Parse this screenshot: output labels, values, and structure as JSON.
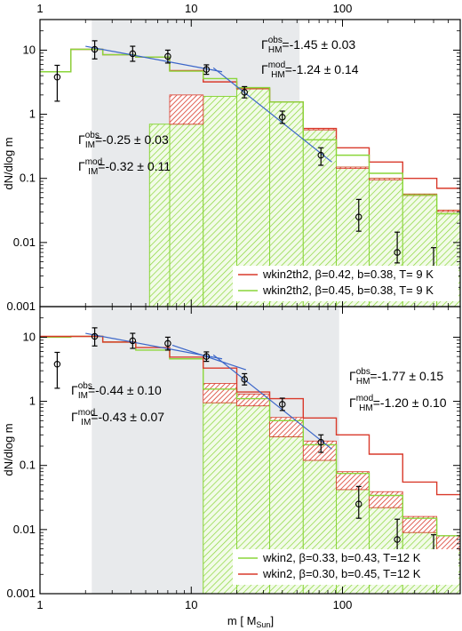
{
  "chart_data": [
    {
      "type": "histogram",
      "panel": "top",
      "xlabel": "",
      "ylabel": "dN/dlog m",
      "xscale": "log",
      "yscale": "log",
      "xlim": [
        1,
        600
      ],
      "ylim": [
        0.001,
        30
      ],
      "xticks_labels": [
        "1",
        "10",
        "100"
      ],
      "xticks_position": "top",
      "yticks": [
        0.001,
        0.01,
        0.1,
        1,
        10
      ],
      "yticks_labels": [
        "0.001",
        "0.01",
        "0.1",
        "1",
        "10"
      ],
      "shaded_region": [
        2.2,
        52
      ],
      "bin_edges": [
        1,
        1.6,
        2.6,
        4.3,
        7.2,
        12,
        20,
        33,
        55,
        91,
        150,
        250,
        420,
        600
      ],
      "series": [
        {
          "name": "wkin2th2, β=0.42, b=0.38, T= 9 K",
          "color": "#d93a2b",
          "values": [
            4.6,
            10.3,
            8.5,
            7.8,
            4.8,
            3.2,
            2.5,
            1.55,
            0.6,
            0.3,
            0.18,
            0.1,
            0.07
          ],
          "lower_values": [
            null,
            null,
            null,
            null,
            0.7,
            1.9,
            2.5,
            1.55,
            0.6,
            0.15,
            0.1,
            0.057,
            0.032
          ]
        },
        {
          "name": "wkin2th2, β=0.45, b=0.38, T= 9 K",
          "color": "#8ad63a",
          "values": [
            4.6,
            10.3,
            8.5,
            7.8,
            4.7,
            3.6,
            2.6,
            1.55,
            0.4,
            0.23,
            0.12,
            0.055,
            0.028
          ]
        }
      ],
      "observed": {
        "x": [
          1.3,
          2.3,
          4.1,
          7.0,
          12.6,
          22.5,
          40,
          72,
          128,
          230,
          400
        ],
        "y": [
          3.8,
          10.3,
          8.8,
          8.0,
          5.0,
          2.2,
          0.9,
          0.23,
          0.025,
          0.007,
          0.0038
        ],
        "yerr_low": [
          1.6,
          7.3,
          6.7,
          6.3,
          4.2,
          1.8,
          0.72,
          0.16,
          0.015,
          0.0048,
          0.0026
        ],
        "yerr_high": [
          5.8,
          14.0,
          11.5,
          10.0,
          5.9,
          2.7,
          1.12,
          0.3,
          0.047,
          0.0145,
          0.0083
        ]
      },
      "fits": [
        {
          "x": [
            2,
            16
          ],
          "y": [
            11.5,
            4.6
          ]
        },
        {
          "x": [
            14,
            85
          ],
          "y": [
            5.3,
            0.18
          ]
        }
      ],
      "annotations": [
        {
          "label": "Γ",
          "sub": "HM",
          "sup": "obs",
          "value": "=-1.45 ± 0.03"
        },
        {
          "label": "Γ",
          "sub": "HM",
          "sup": "mod",
          "value": "=-1.24 ± 0.14"
        },
        {
          "label": "Γ",
          "sub": "IM",
          "sup": "obs",
          "value": "=-0.25 ± 0.03"
        },
        {
          "label": "Γ",
          "sub": "IM",
          "sup": "mod",
          "value": "=-0.32 ± 0.11"
        }
      ],
      "legend_position": "bottom-right"
    },
    {
      "type": "histogram",
      "panel": "bottom",
      "xlabel": "m [ M",
      "xlabel_sub": "Sun",
      "xlabel_end": "]",
      "ylabel": "dN/dlog m",
      "xscale": "log",
      "yscale": "log",
      "xlim": [
        1,
        600
      ],
      "ylim": [
        0.001,
        30
      ],
      "xticks_labels": [
        "1",
        "10",
        "100"
      ],
      "yticks": [
        0.001,
        0.01,
        0.1,
        1,
        10
      ],
      "yticks_labels": [
        "0.001",
        "0.01",
        "0.1",
        "1",
        "10"
      ],
      "shaded_region": [
        2.2,
        95
      ],
      "bin_edges": [
        1,
        1.6,
        2.6,
        4.3,
        7.2,
        12,
        20,
        33,
        55,
        91,
        150,
        250,
        420,
        600
      ],
      "series": [
        {
          "name": "wkin2, β=0.33, b=0.43, T=12 K",
          "color": "#8ad63a",
          "values": [
            10.0,
            10.3,
            8.4,
            6.3,
            4.6,
            1.55,
            1.1,
            0.5,
            0.21,
            0.075,
            0.034,
            0.015,
            0.008
          ],
          "upper_values": [
            null,
            null,
            null,
            null,
            null,
            1.9,
            1.3,
            0.56,
            0.24,
            0.08,
            0.039,
            0.016,
            0.008
          ],
          "fill_values": [
            null,
            null,
            null,
            null,
            null,
            0.95,
            0.85,
            0.28,
            0.12,
            0.042,
            0.022,
            0.009,
            0.0048
          ]
        },
        {
          "name": "wkin2, β=0.30, b=0.45, T=12 K",
          "color": "#d93a2b",
          "values": [
            10.3,
            10.3,
            8.4,
            6.9,
            4.9,
            3.3,
            1.4,
            1.1,
            0.55,
            0.3,
            0.15,
            0.055,
            0.035
          ],
          "lower_values": [
            null,
            null,
            null,
            null,
            null,
            1.9,
            1.3,
            0.56,
            0.24,
            0.08,
            0.039,
            0.016,
            0.008
          ]
        }
      ],
      "observed": {
        "x": [
          1.3,
          2.3,
          4.1,
          7.0,
          12.6,
          22.5,
          40,
          72,
          128,
          230,
          400
        ],
        "y": [
          3.8,
          10.3,
          8.8,
          8.0,
          5.0,
          2.2,
          0.9,
          0.23,
          0.025,
          0.007,
          0.0038
        ],
        "yerr_low": [
          1.6,
          7.3,
          6.7,
          6.3,
          4.2,
          1.8,
          0.72,
          0.16,
          0.015,
          0.0048,
          0.0026
        ],
        "yerr_high": [
          5.8,
          14.0,
          11.5,
          10.0,
          5.9,
          2.7,
          1.12,
          0.3,
          0.047,
          0.0145,
          0.0083
        ]
      },
      "fits": [
        {
          "x": [
            2,
            16
          ],
          "y": [
            11.5,
            4.6
          ]
        },
        {
          "x": [
            14,
            85
          ],
          "y": [
            5.3,
            0.18
          ]
        },
        {
          "x": [
            7.5,
            23
          ],
          "y": [
            7.5,
            3.1
          ]
        }
      ],
      "annotations": [
        {
          "label": "Γ",
          "sub": "IM",
          "sup": "obs",
          "value": "=-0.44 ± 0.10"
        },
        {
          "label": "Γ",
          "sub": "IM",
          "sup": "mod",
          "value": "=-0.43 ± 0.07"
        },
        {
          "label": "Γ",
          "sub": "HM",
          "sup": "obs",
          "value": "=-1.77 ± 0.15"
        },
        {
          "label": "Γ",
          "sub": "HM",
          "sup": "mod",
          "value": "=-1.20 ± 0.10"
        }
      ],
      "legend_position": "bottom-right"
    }
  ],
  "colors": {
    "red": "#d93a2b",
    "green": "#8ad63a",
    "fit": "#3b66c9",
    "shade": "#e8eaec",
    "frame": "#000000"
  }
}
